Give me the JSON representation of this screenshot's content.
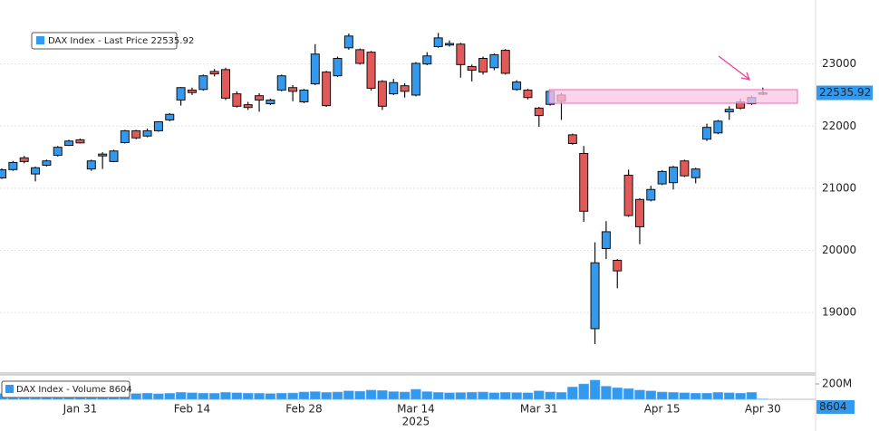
{
  "chart_data": [
    {
      "type": "candlestick",
      "name": "DAX Index - Last Price 22535.92",
      "up_color": "#3399ee",
      "down_color": "#e05a5a",
      "categories": [
        null,
        null,
        null,
        null,
        null,
        null,
        null,
        "Jan 31",
        null,
        null,
        null,
        null,
        null,
        null,
        null,
        null,
        null,
        "Feb 14",
        null,
        null,
        null,
        null,
        null,
        null,
        null,
        null,
        null,
        "Feb 28",
        null,
        null,
        null,
        null,
        null,
        null,
        null,
        null,
        null,
        "Mar 14",
        null,
        null,
        null,
        null,
        null,
        null,
        null,
        null,
        null,
        null,
        "Mar 31",
        null,
        null,
        null,
        null,
        null,
        null,
        null,
        null,
        null,
        null,
        "Apr 15",
        null,
        null,
        null,
        null,
        null,
        null,
        null,
        null,
        "Apr 30"
      ],
      "year_label": "2025",
      "open": [
        21167,
        21300,
        21490,
        21230,
        21370,
        21530,
        21690,
        21780,
        21310,
        21520,
        21430,
        21735,
        21925,
        21840,
        21925,
        22100,
        22420,
        22580,
        22590,
        22880,
        22910,
        22520,
        22345,
        22490,
        22360,
        22580,
        22620,
        22390,
        22680,
        22870,
        22810,
        23260,
        23230,
        23190,
        22720,
        22520,
        22650,
        22500,
        23000,
        23280,
        23305,
        23320,
        22960,
        23090,
        22940,
        23220,
        22590,
        22580,
        22290,
        22350,
        22500,
        21860,
        21560,
        18740,
        20030,
        19840,
        21210,
        20820,
        20810,
        21070,
        21090,
        21440,
        21170,
        21790,
        21890,
        22230,
        22390,
        22360,
        22520
      ],
      "high": [
        21320,
        21440,
        21520,
        21350,
        21460,
        21680,
        21780,
        21800,
        21460,
        21580,
        21620,
        21940,
        21940,
        21960,
        22080,
        22210,
        22630,
        22620,
        22830,
        22920,
        22940,
        22560,
        22390,
        22530,
        22440,
        22830,
        22660,
        22600,
        23320,
        22890,
        23120,
        23490,
        23250,
        23210,
        22740,
        22760,
        22690,
        23030,
        23190,
        23500,
        23380,
        23340,
        22990,
        23120,
        23170,
        23240,
        22740,
        22600,
        22310,
        22570,
        22530,
        21880,
        21680,
        20130,
        20470,
        19860,
        21300,
        20840,
        21040,
        21290,
        21360,
        21460,
        21330,
        22040,
        22100,
        22320,
        22440,
        22490,
        22620
      ],
      "low": [
        21150,
        21280,
        21400,
        21110,
        21350,
        21510,
        21680,
        21720,
        21280,
        21310,
        21420,
        21720,
        21790,
        21820,
        21910,
        22080,
        22330,
        22500,
        22570,
        22800,
        22420,
        22300,
        22260,
        22230,
        22340,
        22560,
        22400,
        22370,
        22660,
        22310,
        22790,
        23230,
        22990,
        22570,
        22260,
        22500,
        22460,
        22480,
        22980,
        23260,
        23280,
        22780,
        22720,
        22830,
        22900,
        22830,
        22570,
        22430,
        21990,
        22330,
        22100,
        21700,
        20460,
        18490,
        19860,
        19390,
        20540,
        20100,
        20790,
        21050,
        20980,
        21180,
        21080,
        21760,
        21870,
        22100,
        22270,
        22340,
        22500
      ],
      "close": [
        21298,
        21415,
        21430,
        21330,
        21440,
        21660,
        21760,
        21730,
        21440,
        21550,
        21600,
        21925,
        21810,
        21925,
        22070,
        22190,
        22620,
        22540,
        22810,
        22840,
        22450,
        22320,
        22300,
        22420,
        22420,
        22810,
        22560,
        22580,
        23160,
        22330,
        23090,
        23450,
        23010,
        22610,
        22320,
        22700,
        22560,
        23010,
        23130,
        23420,
        23330,
        22990,
        22900,
        22870,
        23150,
        22850,
        22710,
        22460,
        22170,
        22560,
        22400,
        21720,
        20630,
        19800,
        20300,
        19670,
        20560,
        20380,
        20980,
        21270,
        21340,
        21200,
        21310,
        21980,
        22080,
        22270,
        22290,
        22460,
        22535.92
      ],
      "ylim": [
        18040,
        24030
      ],
      "yticks": [
        19000,
        20000,
        21000,
        22000,
        23000
      ],
      "grid": true
    },
    {
      "type": "bar",
      "name": "DAX Index - Volume 8604",
      "color": "#3399ee",
      "values": [
        75000000,
        70000000,
        72000000,
        68000000,
        70000000,
        75000000,
        72000000,
        80000000,
        85000000,
        70000000,
        72000000,
        78000000,
        75000000,
        80000000,
        72000000,
        78000000,
        90000000,
        85000000,
        80000000,
        78000000,
        90000000,
        85000000,
        80000000,
        78000000,
        75000000,
        80000000,
        82000000,
        95000000,
        100000000,
        90000000,
        95000000,
        110000000,
        105000000,
        120000000,
        115000000,
        100000000,
        95000000,
        130000000,
        100000000,
        90000000,
        85000000,
        88000000,
        92000000,
        95000000,
        85000000,
        90000000,
        88000000,
        85000000,
        110000000,
        95000000,
        90000000,
        160000000,
        200000000,
        250000000,
        170000000,
        150000000,
        140000000,
        120000000,
        110000000,
        95000000,
        90000000,
        85000000,
        80000000,
        80000000,
        90000000,
        85000000,
        80000000,
        90000000,
        8604
      ],
      "ylim": [
        0,
        294000000
      ],
      "yticks": [
        {
          "value": 200000000,
          "label": "200M"
        }
      ]
    }
  ]
}
